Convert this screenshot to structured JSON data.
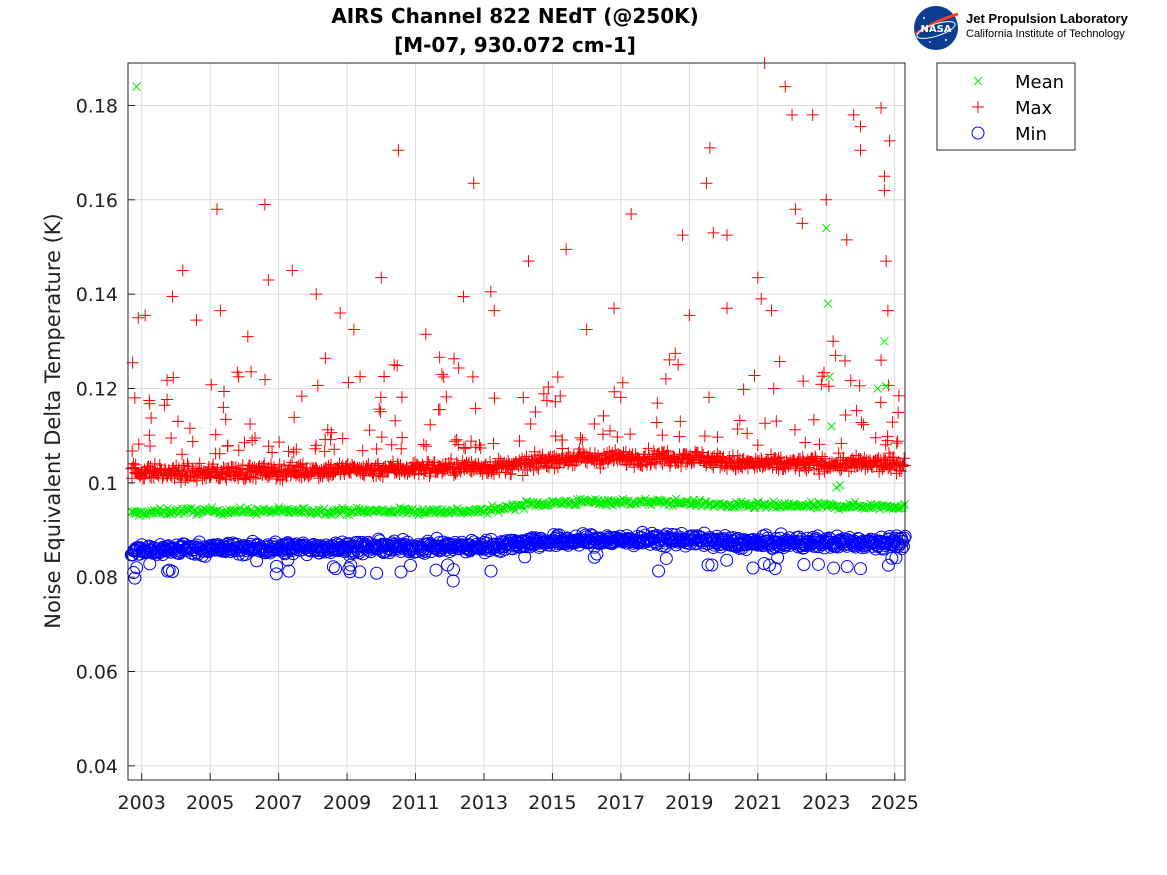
{
  "logo": {
    "agency": "NASA",
    "title": "Jet Propulsion Laboratory",
    "subtitle": "California Institute of Technology"
  },
  "colors": {
    "mean": "#00ee00",
    "max": "#ff0000",
    "min": "#0000ff",
    "grid": "#dcdcdc",
    "axis": "#262626"
  },
  "chart_data": {
    "type": "scatter",
    "title": "AIRS Channel 822 NEdT (@250K)",
    "subtitle": "[M-07, 930.072 cm-1]",
    "xlabel": "",
    "ylabel": "Noise Equivalent Delta Temperature (K)",
    "xlim": [
      2002.6,
      2025.3
    ],
    "ylim": [
      0.037,
      0.189
    ],
    "x_ticks": [
      "2003",
      "2005",
      "2007",
      "2009",
      "2011",
      "2013",
      "2015",
      "2017",
      "2019",
      "2021",
      "2023",
      "2025"
    ],
    "y_ticks": [
      "0.04",
      "0.06",
      "0.08",
      "0.1",
      "0.12",
      "0.14",
      "0.16",
      "0.18"
    ],
    "grid": true,
    "legend_position": "outside-top-right",
    "series": [
      {
        "name": "Mean",
        "marker": "x",
        "baseline": [
          [
            2002.7,
            0.0935
          ],
          [
            2004,
            0.094
          ],
          [
            2013,
            0.094
          ],
          [
            2014.3,
            0.0955
          ],
          [
            2016,
            0.096
          ],
          [
            2019,
            0.0958
          ],
          [
            2020,
            0.0952
          ],
          [
            2025.3,
            0.095
          ]
        ],
        "outliers": [
          [
            2002.85,
            0.184
          ],
          [
            2023.0,
            0.154
          ],
          [
            2023.05,
            0.138
          ],
          [
            2023.1,
            0.1225
          ],
          [
            2023.15,
            0.112
          ],
          [
            2023.3,
            0.099
          ],
          [
            2023.4,
            0.0995
          ],
          [
            2024.5,
            0.12
          ],
          [
            2024.7,
            0.13
          ],
          [
            2024.75,
            0.1205
          ]
        ]
      },
      {
        "name": "Max",
        "marker": "+",
        "baseline": [
          [
            2002.7,
            0.1025
          ],
          [
            2004,
            0.102
          ],
          [
            2014,
            0.1035
          ],
          [
            2015,
            0.105
          ],
          [
            2019,
            0.1055
          ],
          [
            2020.5,
            0.104
          ],
          [
            2025.3,
            0.104
          ]
        ],
        "outliers": [
          [
            2002.8,
            0.118
          ],
          [
            2002.9,
            0.135
          ],
          [
            2003.1,
            0.1355
          ],
          [
            2003.9,
            0.1395
          ],
          [
            2004.2,
            0.145
          ],
          [
            2004.6,
            0.1345
          ],
          [
            2005.2,
            0.158
          ],
          [
            2005.3,
            0.1365
          ],
          [
            2006.1,
            0.131
          ],
          [
            2006.6,
            0.159
          ],
          [
            2006.7,
            0.143
          ],
          [
            2007.4,
            0.145
          ],
          [
            2008.1,
            0.14
          ],
          [
            2008.8,
            0.136
          ],
          [
            2009.2,
            0.1325
          ],
          [
            2010.0,
            0.1435
          ],
          [
            2010.5,
            0.1705
          ],
          [
            2011.3,
            0.1315
          ],
          [
            2012.4,
            0.1395
          ],
          [
            2012.7,
            0.1635
          ],
          [
            2013.2,
            0.1405
          ],
          [
            2013.3,
            0.1365
          ],
          [
            2014.3,
            0.147
          ],
          [
            2015.4,
            0.1495
          ],
          [
            2016.0,
            0.1325
          ],
          [
            2016.8,
            0.137
          ],
          [
            2017.3,
            0.157
          ],
          [
            2018.8,
            0.1525
          ],
          [
            2019.0,
            0.1355
          ],
          [
            2019.5,
            0.1635
          ],
          [
            2019.6,
            0.171
          ],
          [
            2019.7,
            0.153
          ],
          [
            2020.1,
            0.1525
          ],
          [
            2020.1,
            0.137
          ],
          [
            2021.0,
            0.1435
          ],
          [
            2021.1,
            0.139
          ],
          [
            2021.2,
            0.189
          ],
          [
            2021.4,
            0.1365
          ],
          [
            2021.8,
            0.184
          ],
          [
            2022.0,
            0.178
          ],
          [
            2022.1,
            0.158
          ],
          [
            2022.3,
            0.155
          ],
          [
            2022.6,
            0.178
          ],
          [
            2023.0,
            0.16
          ],
          [
            2023.2,
            0.13
          ],
          [
            2023.6,
            0.1515
          ],
          [
            2023.8,
            0.178
          ],
          [
            2024.0,
            0.1755
          ],
          [
            2024.0,
            0.1705
          ],
          [
            2024.6,
            0.1795
          ],
          [
            2024.7,
            0.165
          ],
          [
            2024.7,
            0.162
          ],
          [
            2024.75,
            0.147
          ],
          [
            2024.8,
            0.1365
          ],
          [
            2024.85,
            0.1725
          ],
          [
            2024.6,
            0.126
          ]
        ]
      },
      {
        "name": "Min",
        "marker": "o",
        "baseline": [
          [
            2002.7,
            0.0855
          ],
          [
            2004,
            0.086
          ],
          [
            2013,
            0.0865
          ],
          [
            2014.5,
            0.0875
          ],
          [
            2016,
            0.0878
          ],
          [
            2019,
            0.088
          ],
          [
            2020.5,
            0.0872
          ],
          [
            2025.3,
            0.0875
          ]
        ],
        "outliers": [
          [
            2002.8,
            0.0798
          ],
          [
            2003.9,
            0.0812
          ],
          [
            2012.1,
            0.0792
          ],
          [
            2018.1,
            0.0813
          ],
          [
            2024.0,
            0.0818
          ],
          [
            2011.6,
            0.0815
          ],
          [
            2008.6,
            0.0822
          ]
        ]
      }
    ]
  }
}
